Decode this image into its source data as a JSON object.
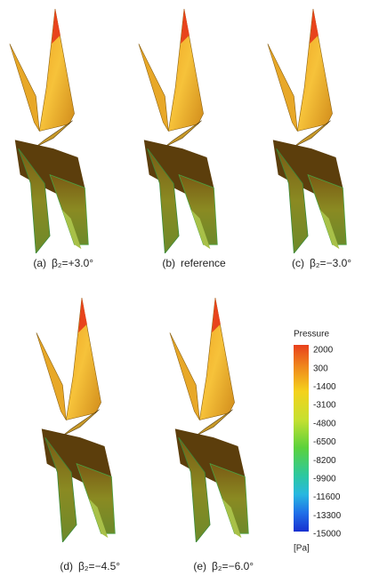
{
  "panels": [
    {
      "label": "(a)",
      "caption": "β₂=+3.0°"
    },
    {
      "label": "(b)",
      "caption": "reference"
    },
    {
      "label": "(c)",
      "caption": "β₂=−3.0°"
    },
    {
      "label": "(d)",
      "caption": "β₂=−4.5°"
    },
    {
      "label": "(e)",
      "caption": "β₂=−6.0°"
    }
  ],
  "colorbar": {
    "title": "Pressure",
    "ticks": [
      2000,
      300,
      -1400,
      -3100,
      -4800,
      -6500,
      -8200,
      -9900,
      -11600,
      -13300,
      -15000
    ],
    "unit": "[Pa]"
  }
}
